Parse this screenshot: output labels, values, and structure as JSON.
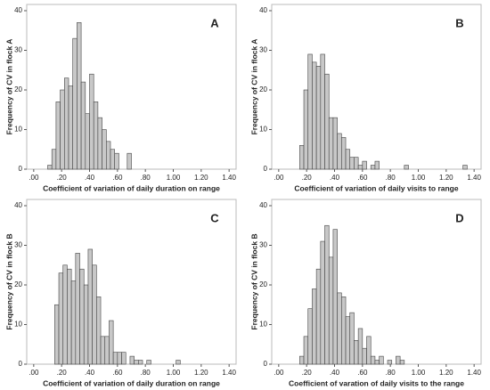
{
  "chart_data": [
    {
      "type": "histogram",
      "label": "A",
      "xlabel": "Coefficient of variation of daily duration on range",
      "ylabel": "Frequency of CV in flock A",
      "bins": [
        0.1,
        0.13,
        0.16,
        0.19,
        0.22,
        0.25,
        0.28,
        0.31,
        0.34,
        0.37,
        0.4,
        0.43,
        0.46,
        0.49,
        0.52,
        0.55,
        0.58,
        0.61,
        0.64,
        0.67,
        0.7
      ],
      "counts": [
        1,
        5,
        17,
        20,
        23,
        21,
        33,
        37,
        22,
        14,
        24,
        17,
        13,
        10,
        7,
        5,
        4,
        0,
        0,
        4
      ],
      "color": "#c8c8c8",
      "xlim": [
        -0.05,
        1.45
      ],
      "ylim": [
        0,
        40
      ],
      "xticks": [
        {
          "value": 0,
          "label": ".00"
        },
        {
          "value": 0.2,
          "label": ".20"
        },
        {
          "value": 0.4,
          "label": ".40"
        },
        {
          "value": 0.6,
          "label": ".60"
        },
        {
          "value": 0.8,
          "label": ".80"
        },
        {
          "value": 1,
          "label": "1.00"
        },
        {
          "value": 1.2,
          "label": "1.20"
        },
        {
          "value": 1.4,
          "label": "1.40"
        }
      ],
      "yticks": [
        0,
        10,
        20,
        30,
        40
      ]
    },
    {
      "type": "histogram",
      "label": "B",
      "xlabel": "Coefficient of variation of daily visits to range",
      "ylabel": "Frequency of CV in flock A",
      "bins": [
        0.15,
        0.18,
        0.21,
        0.24,
        0.27,
        0.3,
        0.33,
        0.36,
        0.39,
        0.42,
        0.45,
        0.48,
        0.51,
        0.54,
        0.57,
        0.6,
        0.63,
        0.66,
        0.69,
        0.72,
        0.75,
        0.78,
        0.81,
        0.84,
        0.87,
        0.9,
        0.93,
        0.96,
        0.99,
        1.02,
        1.05,
        1.08,
        1.11,
        1.14,
        1.17,
        1.2,
        1.23,
        1.26,
        1.29,
        1.32,
        1.35
      ],
      "counts": [
        6,
        20,
        29,
        27,
        26,
        29,
        24,
        13,
        13,
        9,
        8,
        5,
        3,
        3,
        1,
        2,
        0,
        1,
        2,
        0,
        0,
        0,
        0,
        0,
        0,
        1,
        0,
        0,
        0,
        0,
        0,
        0,
        0,
        0,
        0,
        0,
        0,
        0,
        0,
        1
      ],
      "color": "#c8c8c8",
      "xlim": [
        -0.05,
        1.45
      ],
      "ylim": [
        0,
        40
      ],
      "xticks": [
        {
          "value": 0,
          "label": ".00"
        },
        {
          "value": 0.2,
          "label": ".20"
        },
        {
          "value": 0.4,
          "label": ".40"
        },
        {
          "value": 0.6,
          "label": ".60"
        },
        {
          "value": 0.8,
          "label": ".80"
        },
        {
          "value": 1,
          "label": "1.00"
        },
        {
          "value": 1.2,
          "label": "1.20"
        },
        {
          "value": 1.4,
          "label": "1.40"
        }
      ],
      "yticks": [
        0,
        10,
        20,
        30,
        40
      ]
    },
    {
      "type": "histogram",
      "label": "C",
      "xlabel": "Coefficient of variation of daily duration on range",
      "ylabel": "Frequency of CV in flock B",
      "bins": [
        0.15,
        0.18,
        0.21,
        0.24,
        0.27,
        0.3,
        0.33,
        0.36,
        0.39,
        0.42,
        0.45,
        0.48,
        0.51,
        0.54,
        0.57,
        0.6,
        0.63,
        0.66,
        0.69,
        0.72,
        0.75,
        0.78,
        0.81,
        0.84,
        0.87,
        0.9,
        0.93,
        0.96,
        0.99,
        1.02,
        1.05
      ],
      "counts": [
        15,
        23,
        25,
        24,
        21,
        28,
        24,
        20,
        29,
        25,
        17,
        7,
        7,
        11,
        3,
        3,
        3,
        0,
        2,
        1,
        1,
        0,
        1,
        0,
        0,
        0,
        0,
        0,
        0,
        1
      ],
      "color": "#c8c8c8",
      "xlim": [
        -0.05,
        1.45
      ],
      "ylim": [
        0,
        40
      ],
      "xticks": [
        {
          "value": 0,
          "label": ".00"
        },
        {
          "value": 0.2,
          "label": ".20"
        },
        {
          "value": 0.4,
          "label": ".40"
        },
        {
          "value": 0.6,
          "label": ".60"
        },
        {
          "value": 0.8,
          "label": ".80"
        },
        {
          "value": 1,
          "label": "1.00"
        },
        {
          "value": 1.2,
          "label": "1.20"
        },
        {
          "value": 1.4,
          "label": "1.40"
        }
      ],
      "yticks": [
        0,
        10,
        20,
        30,
        40
      ]
    },
    {
      "type": "histogram",
      "label": "D",
      "xlabel": "Coefficient of varation of daily visits to the range",
      "ylabel": "Frequency of CV in flock B",
      "bins": [
        0.15,
        0.18,
        0.21,
        0.24,
        0.27,
        0.3,
        0.33,
        0.36,
        0.39,
        0.42,
        0.45,
        0.48,
        0.51,
        0.54,
        0.57,
        0.6,
        0.63,
        0.66,
        0.69,
        0.72,
        0.75,
        0.78,
        0.81,
        0.84,
        0.87,
        0.9
      ],
      "counts": [
        2,
        7,
        14,
        19,
        24,
        31,
        35,
        27,
        34,
        18,
        17,
        12,
        13,
        6,
        9,
        4,
        7,
        2,
        1,
        2,
        0,
        1,
        0,
        2,
        1
      ],
      "color": "#c8c8c8",
      "xlim": [
        -0.05,
        1.45
      ],
      "ylim": [
        0,
        40
      ],
      "xticks": [
        {
          "value": 0,
          "label": ".00"
        },
        {
          "value": 0.2,
          "label": ".20"
        },
        {
          "value": 0.4,
          "label": ".40"
        },
        {
          "value": 0.6,
          "label": ".60"
        },
        {
          "value": 0.8,
          "label": ".80"
        },
        {
          "value": 1,
          "label": "1.00"
        },
        {
          "value": 1.2,
          "label": "1.20"
        },
        {
          "value": 1.4,
          "label": "1.40"
        }
      ],
      "yticks": [
        0,
        10,
        20,
        30,
        40
      ]
    }
  ]
}
